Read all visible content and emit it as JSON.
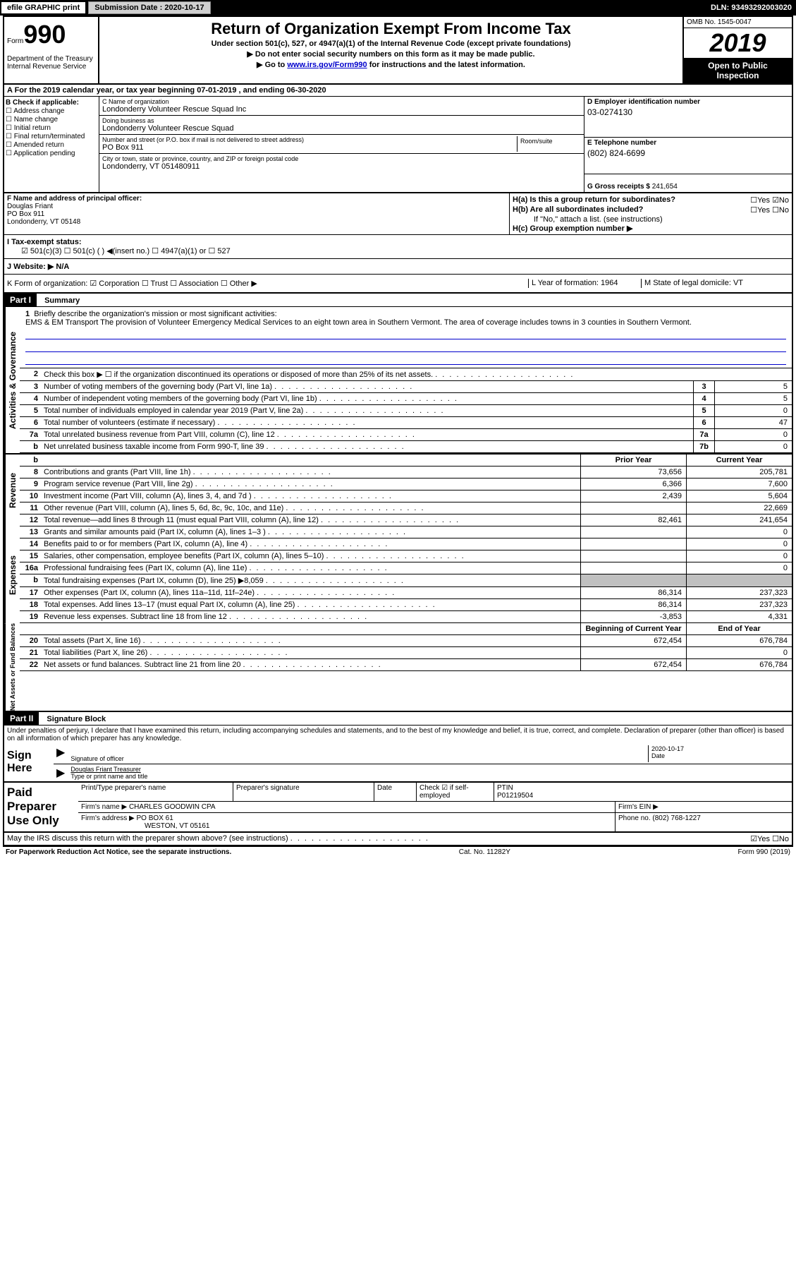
{
  "topbar": {
    "efile": "efile GRAPHIC print",
    "submission_label": "Submission Date :",
    "submission_date": "2020-10-17",
    "dln": "DLN: 93493292003020"
  },
  "header": {
    "form_word": "Form",
    "form_num": "990",
    "dept": "Department of the Treasury\nInternal Revenue Service",
    "title": "Return of Organization Exempt From Income Tax",
    "subtitle": "Under section 501(c), 527, or 4947(a)(1) of the Internal Revenue Code (except private foundations)",
    "arrow1": "▶ Do not enter social security numbers on this form as it may be made public.",
    "arrow2_pre": "▶ Go to ",
    "arrow2_link": "www.irs.gov/Form990",
    "arrow2_post": " for instructions and the latest information.",
    "omb": "OMB No. 1545-0047",
    "year": "2019",
    "open": "Open to Public Inspection"
  },
  "row_a": "A For the 2019 calendar year, or tax year beginning 07-01-2019    , and ending 06-30-2020",
  "col_b": {
    "label": "B Check if applicable:",
    "items": [
      "☐ Address change",
      "☐ Name change",
      "☐ Initial return",
      "☐ Final return/terminated",
      "☐ Amended return",
      "☐ Application pending"
    ]
  },
  "col_c": {
    "name_label": "C Name of organization",
    "name": "Londonderry Volunteer Rescue Squad Inc",
    "dba_label": "Doing business as",
    "dba": "Londonderry Volunteer Rescue Squad",
    "addr_label": "Number and street (or P.O. box if mail is not delivered to street address)",
    "addr": "PO Box 911",
    "room_label": "Room/suite",
    "city_label": "City or town, state or province, country, and ZIP or foreign postal code",
    "city": "Londonderry, VT  051480911"
  },
  "col_d": {
    "ein_label": "D Employer identification number",
    "ein": "03-0274130",
    "phone_label": "E Telephone number",
    "phone": "(802) 824-6699",
    "gross_label": "G Gross receipts $",
    "gross": "241,654"
  },
  "col_f": {
    "label": "F Name and address of principal officer:",
    "name": "Douglas Friant",
    "addr1": "PO Box 911",
    "addr2": "Londonderry, VT  05148"
  },
  "col_h": {
    "ha": "H(a)  Is this a group return for subordinates?",
    "ha_ans": "☐Yes ☑No",
    "hb": "H(b)  Are all subordinates included?",
    "hb_ans": "☐Yes ☐No",
    "hb_note": "If \"No,\" attach a list. (see instructions)",
    "hc": "H(c)  Group exemption number ▶"
  },
  "row_i": {
    "label": "I    Tax-exempt status:",
    "opts": "☑ 501(c)(3)    ☐ 501(c) (  ) ◀(insert no.)    ☐ 4947(a)(1) or   ☐ 527"
  },
  "row_j": "J    Website: ▶   N/A",
  "row_k": {
    "k": "K Form of organization:  ☑ Corporation  ☐ Trust  ☐ Association  ☐ Other ▶",
    "l": "L Year of formation: 1964",
    "m": "M State of legal domicile: VT"
  },
  "part1": {
    "label": "Part I",
    "title": "Summary"
  },
  "mission": {
    "num": "1",
    "label": "Briefly describe the organization's mission or most significant activities:",
    "text": "EMS & EM Transport The provision of Volunteer Emergency Medical Services to an eight town area in Southern Vermont. The area of coverage includes towns in 3 counties in Southern Vermont."
  },
  "gov_rows": [
    {
      "n": "2",
      "label": "Check this box ▶ ☐ if the organization discontinued its operations or disposed of more than 25% of its net assets.",
      "box": "",
      "val": ""
    },
    {
      "n": "3",
      "label": "Number of voting members of the governing body (Part VI, line 1a)",
      "box": "3",
      "val": "5"
    },
    {
      "n": "4",
      "label": "Number of independent voting members of the governing body (Part VI, line 1b)",
      "box": "4",
      "val": "5"
    },
    {
      "n": "5",
      "label": "Total number of individuals employed in calendar year 2019 (Part V, line 2a)",
      "box": "5",
      "val": "0"
    },
    {
      "n": "6",
      "label": "Total number of volunteers (estimate if necessary)",
      "box": "6",
      "val": "47"
    },
    {
      "n": "7a",
      "label": "Total unrelated business revenue from Part VIII, column (C), line 12",
      "box": "7a",
      "val": "0"
    },
    {
      "n": "b",
      "label": "Net unrelated business taxable income from Form 990-T, line 39",
      "box": "7b",
      "val": "0"
    }
  ],
  "rev_hdr": {
    "prior": "Prior Year",
    "curr": "Current Year"
  },
  "rev_rows": [
    {
      "n": "8",
      "label": "Contributions and grants (Part VIII, line 1h)",
      "prior": "73,656",
      "curr": "205,781"
    },
    {
      "n": "9",
      "label": "Program service revenue (Part VIII, line 2g)",
      "prior": "6,366",
      "curr": "7,600"
    },
    {
      "n": "10",
      "label": "Investment income (Part VIII, column (A), lines 3, 4, and 7d )",
      "prior": "2,439",
      "curr": "5,604"
    },
    {
      "n": "11",
      "label": "Other revenue (Part VIII, column (A), lines 5, 6d, 8c, 9c, 10c, and 11e)",
      "prior": "",
      "curr": "22,669"
    },
    {
      "n": "12",
      "label": "Total revenue—add lines 8 through 11 (must equal Part VIII, column (A), line 12)",
      "prior": "82,461",
      "curr": "241,654"
    }
  ],
  "exp_rows": [
    {
      "n": "13",
      "label": "Grants and similar amounts paid (Part IX, column (A), lines 1–3 )",
      "prior": "",
      "curr": "0"
    },
    {
      "n": "14",
      "label": "Benefits paid to or for members (Part IX, column (A), line 4)",
      "prior": "",
      "curr": "0"
    },
    {
      "n": "15",
      "label": "Salaries, other compensation, employee benefits (Part IX, column (A), lines 5–10)",
      "prior": "",
      "curr": "0"
    },
    {
      "n": "16a",
      "label": "Professional fundraising fees (Part IX, column (A), line 11e)",
      "prior": "",
      "curr": "0"
    },
    {
      "n": "b",
      "label": "Total fundraising expenses (Part IX, column (D), line 25) ▶8,059",
      "prior": "grey",
      "curr": "grey"
    },
    {
      "n": "17",
      "label": "Other expenses (Part IX, column (A), lines 11a–11d, 11f–24e)",
      "prior": "86,314",
      "curr": "237,323"
    },
    {
      "n": "18",
      "label": "Total expenses. Add lines 13–17 (must equal Part IX, column (A), line 25)",
      "prior": "86,314",
      "curr": "237,323"
    },
    {
      "n": "19",
      "label": "Revenue less expenses. Subtract line 18 from line 12",
      "prior": "-3,853",
      "curr": "4,331"
    }
  ],
  "net_hdr": {
    "prior": "Beginning of Current Year",
    "curr": "End of Year"
  },
  "net_rows": [
    {
      "n": "20",
      "label": "Total assets (Part X, line 16)",
      "prior": "672,454",
      "curr": "676,784"
    },
    {
      "n": "21",
      "label": "Total liabilities (Part X, line 26)",
      "prior": "",
      "curr": "0"
    },
    {
      "n": "22",
      "label": "Net assets or fund balances. Subtract line 21 from line 20",
      "prior": "672,454",
      "curr": "676,784"
    }
  ],
  "vtabs": {
    "gov": "Activities & Governance",
    "rev": "Revenue",
    "exp": "Expenses",
    "net": "Net Assets or Fund Balances"
  },
  "part2": {
    "label": "Part II",
    "title": "Signature Block"
  },
  "sig": {
    "decl": "Under penalties of perjury, I declare that I have examined this return, including accompanying schedules and statements, and to the best of my knowledge and belief, it is true, correct, and complete. Declaration of preparer (other than officer) is based on all information of which preparer has any knowledge.",
    "sign_here": "Sign Here",
    "sig_label": "Signature of officer",
    "date_label": "Date",
    "date_val": "2020-10-17",
    "name": "Douglas Friant Treasurer",
    "name_label": "Type or print name and title"
  },
  "paid": {
    "label": "Paid Preparer Use Only",
    "print_label": "Print/Type preparer's name",
    "sig_label": "Preparer's signature",
    "date_label": "Date",
    "check_label": "Check ☑ if self-employed",
    "ptin_label": "PTIN",
    "ptin": "P01219504",
    "firm_name_label": "Firm's name    ▶",
    "firm_name": "CHARLES GOODWIN CPA",
    "firm_ein_label": "Firm's EIN ▶",
    "firm_addr_label": "Firm's address ▶",
    "firm_addr1": "PO BOX 61",
    "firm_addr2": "WESTON, VT  05161",
    "phone_label": "Phone no.",
    "phone": "(802) 768-1227"
  },
  "may": {
    "q": "May the IRS discuss this return with the preparer shown above? (see instructions)",
    "ans": "☑Yes  ☐No"
  },
  "footer": {
    "left": "For Paperwork Reduction Act Notice, see the separate instructions.",
    "mid": "Cat. No. 11282Y",
    "right": "Form 990 (2019)"
  }
}
